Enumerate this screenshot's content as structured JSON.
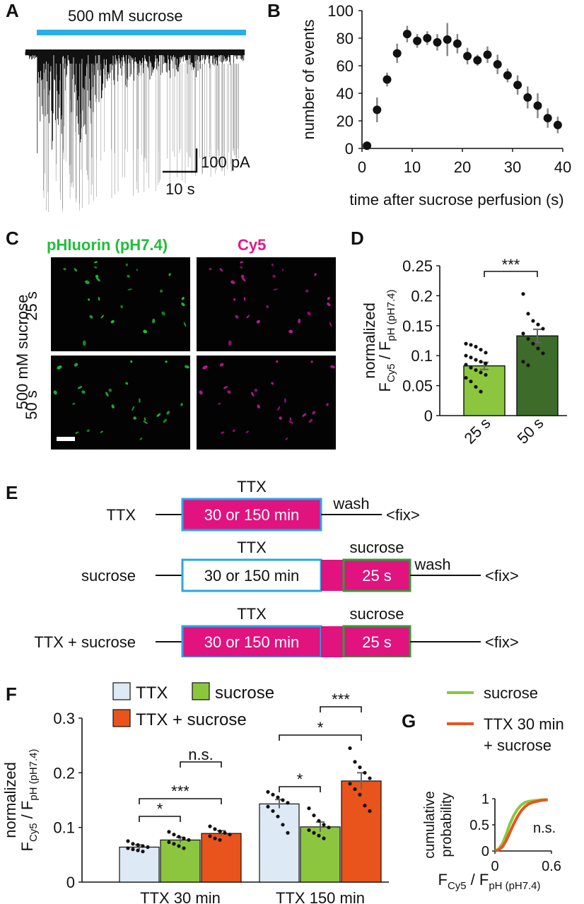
{
  "panels": {
    "A": {
      "label": "A",
      "bar_label": "500 mM sucrose",
      "scale_y": "100 pA",
      "scale_x": "10 s",
      "colors": {
        "bar": "#29aee8",
        "trace": "#111111"
      }
    },
    "C": {
      "label": "C",
      "channel_green": "pHluorin (pH7.4)",
      "channel_magenta": "Cy5",
      "condition": "500 mM sucrose",
      "row1": "25 s",
      "row2": "50 s",
      "colors": {
        "green": "#1fbf3a",
        "magenta": "#e0188c"
      }
    },
    "E": {
      "label": "E",
      "rows": [
        {
          "name": "TTX",
          "ttx_label": "TTX",
          "box_text": "30 or 150 min",
          "wash": "wash",
          "fix": "<fix>"
        },
        {
          "name": "sucrose",
          "ttx_label": "TTX",
          "box_text": "30 or 150 min",
          "sucrose_label": "sucrose",
          "sucrose_box": "25 s",
          "wash": "wash",
          "fix": "<fix>"
        },
        {
          "name": "TTX + sucrose",
          "ttx_label": "TTX",
          "box_text": "30 or 150 min",
          "sucrose_label": "sucrose",
          "sucrose_box": "25 s",
          "fix": "<fix>"
        }
      ],
      "colors": {
        "fill": "#e0137f",
        "ttx_border": "#2aa4e6",
        "sucrose_border": "#2e9e3a"
      }
    }
  },
  "chart_data": [
    {
      "panel": "B",
      "type": "scatter",
      "xlabel": "time after sucrose perfusion (s)",
      "ylabel": "number of events",
      "xlim": [
        0,
        40
      ],
      "ylim": [
        0,
        100
      ],
      "xticks": [
        "0",
        "10",
        "20",
        "30",
        "40"
      ],
      "yticks": [
        "0",
        "20",
        "40",
        "60",
        "80",
        "100"
      ],
      "x": [
        1,
        3,
        5,
        7,
        9,
        11,
        13,
        15,
        17,
        19,
        21,
        23,
        25,
        27,
        29,
        31,
        33,
        35,
        37,
        39
      ],
      "y": [
        2,
        28,
        50,
        69,
        83,
        78,
        80,
        77,
        79,
        76,
        67,
        64,
        68,
        61,
        53,
        46,
        37,
        31,
        22,
        17
      ],
      "err": [
        1,
        9,
        5,
        7,
        6,
        5,
        5,
        6,
        12,
        7,
        6,
        4,
        6,
        7,
        5,
        7,
        8,
        9,
        7,
        6
      ]
    },
    {
      "panel": "D",
      "type": "bar",
      "ylabel": "normalized",
      "ylabel2_main": "F",
      "ylabel2_sub1": "Cy5",
      "ylabel2_mid": " / F",
      "ylabel2_sub2": "pH (pH7.4)",
      "categories": [
        "25 s",
        "50 s"
      ],
      "values": [
        0.083,
        0.133
      ],
      "errors": [
        0.006,
        0.011
      ],
      "colors": [
        "#8cc63f",
        "#3d6b2a"
      ],
      "ylim": [
        0,
        0.25
      ],
      "yticks": [
        "0",
        "0.05",
        "0.1",
        "0.15",
        "0.2",
        "0.25"
      ],
      "significance": "***",
      "points": [
        [
          0.12,
          0.118,
          0.115,
          0.11,
          0.105,
          0.1,
          0.097,
          0.093,
          0.09,
          0.087,
          0.085,
          0.08,
          0.076,
          0.072,
          0.068,
          0.063,
          0.057,
          0.048,
          0.04
        ],
        [
          0.203,
          0.17,
          0.158,
          0.152,
          0.145,
          0.137,
          0.128,
          0.12,
          0.112,
          0.104,
          0.09,
          0.084
        ]
      ]
    },
    {
      "panel": "F",
      "type": "bar",
      "ylabel": "normalized",
      "ylabel2_main": "F",
      "ylabel2_sub1": "Cy5",
      "ylabel2_mid": " / F",
      "ylabel2_sub2": "pH (pH7.4)",
      "groups": [
        "TTX 30 min",
        "TTX 150 min"
      ],
      "legend": [
        "TTX",
        "sucrose",
        "TTX + sucrose"
      ],
      "colors": [
        "#dde9f4",
        "#8cc63f",
        "#e8541c"
      ],
      "series_values": [
        [
          0.064,
          0.077,
          0.089
        ],
        [
          0.143,
          0.101,
          0.185
        ]
      ],
      "series_errors": [
        [
          0.004,
          0.005,
          0.005
        ],
        [
          0.008,
          0.009,
          0.015
        ]
      ],
      "ylim": [
        0,
        0.3
      ],
      "yticks": [
        "0",
        "0.1",
        "0.2",
        "0.3"
      ],
      "significance": [
        "*",
        "***",
        "n.s.",
        "*",
        "*",
        "***"
      ],
      "points": [
        [
          [
            0.075,
            0.07,
            0.068,
            0.066,
            0.064,
            0.062,
            0.06,
            0.058,
            0.056
          ],
          [
            0.092,
            0.087,
            0.083,
            0.08,
            0.077,
            0.073,
            0.07,
            0.066,
            0.062
          ],
          [
            0.102,
            0.097,
            0.093,
            0.09,
            0.087,
            0.084,
            0.08,
            0.077
          ]
        ],
        [
          [
            0.165,
            0.16,
            0.155,
            0.15,
            0.145,
            0.138,
            0.13,
            0.12,
            0.105,
            0.09
          ],
          [
            0.135,
            0.122,
            0.112,
            0.105,
            0.1,
            0.095,
            0.09,
            0.085,
            0.08
          ],
          [
            0.245,
            0.22,
            0.21,
            0.2,
            0.19,
            0.18,
            0.17,
            0.16,
            0.14,
            0.13
          ]
        ]
      ]
    },
    {
      "panel": "G",
      "type": "line",
      "ylabel": "cumulative\nprobability",
      "xlabel_main": "F",
      "xlabel_sub1": "Cy5",
      "xlabel_mid": " / F",
      "xlabel_sub2": "pH (pH7.4)",
      "xlim": [
        0,
        0.6
      ],
      "ylim": [
        0,
        1
      ],
      "xticks": [
        "0",
        "0.6"
      ],
      "yticks": [
        "0",
        "0.5",
        "1"
      ],
      "annotation": "n.s.",
      "series": [
        {
          "name": "sucrose",
          "color": "#8cc63f",
          "x": [
            0.0,
            0.04,
            0.08,
            0.12,
            0.16,
            0.2,
            0.24,
            0.28,
            0.32,
            0.36,
            0.4,
            0.45,
            0.5,
            0.56
          ],
          "y": [
            0.0,
            0.04,
            0.14,
            0.32,
            0.52,
            0.68,
            0.8,
            0.88,
            0.93,
            0.95,
            0.96,
            0.97,
            0.98,
            0.98
          ]
        },
        {
          "name": "TTX 30 min\n+ sucrose",
          "color": "#e8541c",
          "x": [
            0.0,
            0.04,
            0.08,
            0.12,
            0.16,
            0.2,
            0.24,
            0.28,
            0.32,
            0.36,
            0.4,
            0.45,
            0.5,
            0.56
          ],
          "y": [
            0.0,
            0.02,
            0.08,
            0.2,
            0.36,
            0.52,
            0.66,
            0.77,
            0.85,
            0.9,
            0.93,
            0.95,
            0.97,
            0.98
          ]
        }
      ]
    }
  ]
}
